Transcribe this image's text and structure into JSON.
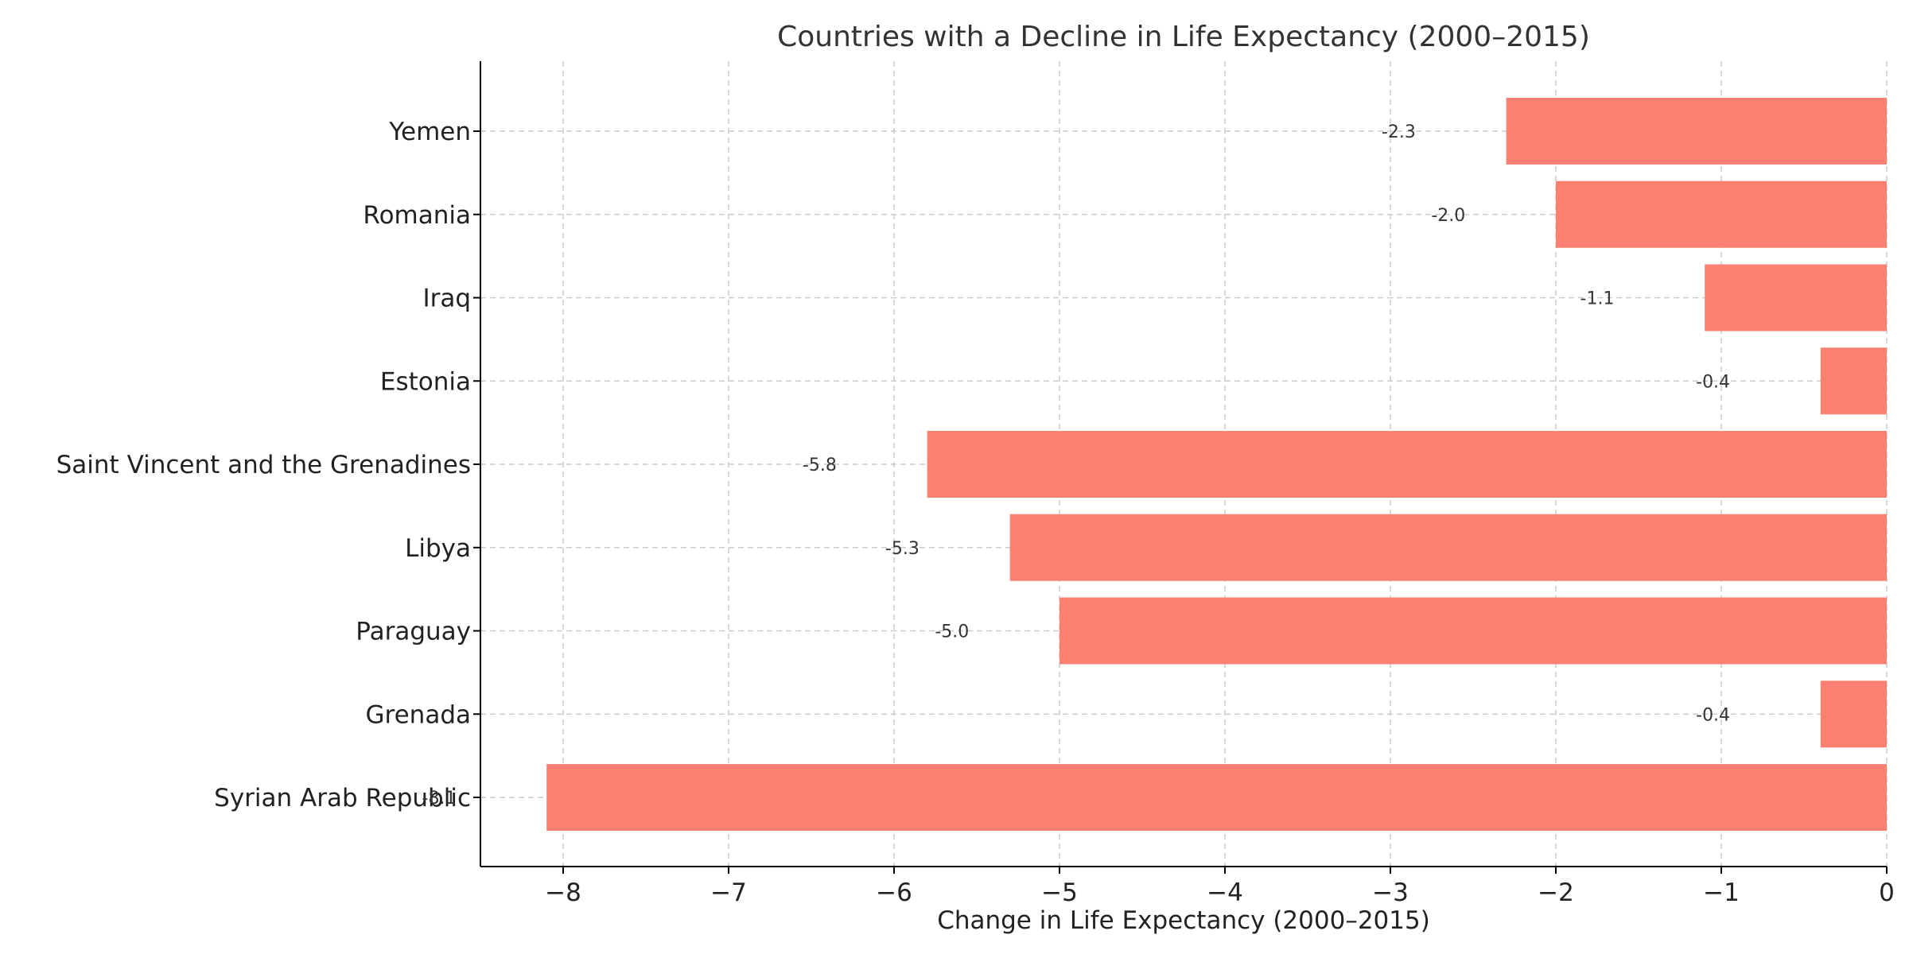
{
  "chart_data": {
    "type": "bar",
    "orientation": "horizontal",
    "title": "Countries with a Decline in Life Expectancy (2000–2015)",
    "xlabel": "Change in Life Expectancy (2000–2015)",
    "ylabel": "",
    "xlim": [
      -8.5,
      0
    ],
    "xticks": [
      -8,
      -7,
      -6,
      -5,
      -4,
      -3,
      -2,
      -1,
      0
    ],
    "xtick_labels": [
      "−8",
      "−7",
      "−6",
      "−5",
      "−4",
      "−3",
      "−2",
      "−1",
      "0"
    ],
    "categories": [
      "Yemen",
      "Romania",
      "Iraq",
      "Estonia",
      "Saint Vincent and the Grenadines",
      "Libya",
      "Paraguay",
      "Grenada",
      "Syrian Arab Republic"
    ],
    "values": [
      -2.3,
      -2.0,
      -1.1,
      -0.4,
      -5.8,
      -5.3,
      -5.0,
      -0.4,
      -8.1
    ],
    "data_labels": [
      "-2.3",
      "-2.0",
      "-1.1",
      "-0.4",
      "-5.8",
      "-5.3",
      "-5.0",
      "-0.4",
      "-8.1"
    ],
    "bar_color": "#fa8072",
    "grid": true,
    "legend": false
  }
}
